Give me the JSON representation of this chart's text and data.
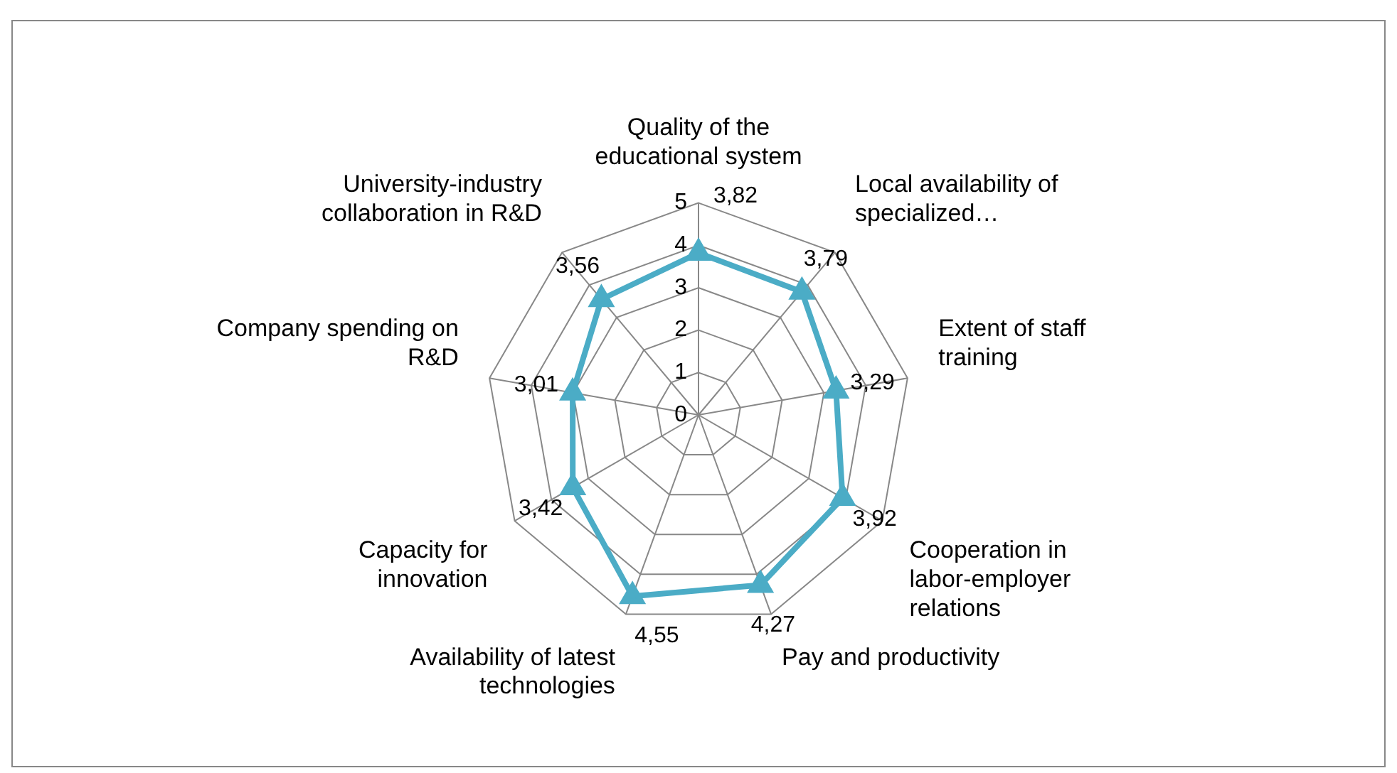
{
  "chart_data": {
    "type": "radar",
    "categories": [
      "Quality of the educational system",
      "Local availability of specialized…",
      "Extent of staff training",
      "Cooperation in labor-employer relations",
      "Pay and productivity",
      "Availability of latest technologies",
      "Capacity for innovation",
      "Company spending on R&D",
      "University-industry collaboration in R&D"
    ],
    "series": [
      {
        "color": "#4bacc6",
        "values": [
          3.82,
          3.79,
          3.29,
          3.92,
          4.27,
          4.55,
          3.42,
          3.01,
          3.56
        ],
        "value_labels": [
          "3,82",
          "3,79",
          "3,29",
          "3,92",
          "4,27",
          "4,55",
          "3,42",
          "3,01",
          "3,56"
        ]
      }
    ],
    "ylim": [
      0,
      5
    ],
    "yticks": [
      0,
      1,
      2,
      3,
      4,
      5
    ],
    "marker": "triangle",
    "grid": true,
    "legend": false
  }
}
